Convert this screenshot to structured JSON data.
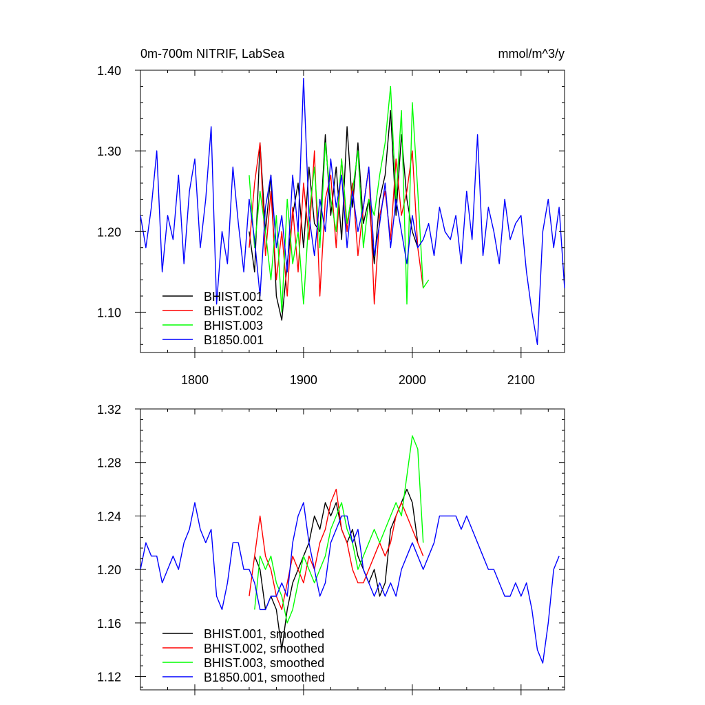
{
  "header": {
    "title": "0m-700m NITRIF, LabSea",
    "units": "mmol/m^3/y"
  },
  "chart_data": [
    {
      "type": "line",
      "title": "0m-700m NITRIF, LabSea",
      "units": "mmol/m^3/y",
      "xlim": [
        1750,
        2140
      ],
      "ylim": [
        1.05,
        1.4
      ],
      "xticks": [
        1800,
        1900,
        2000,
        2100
      ],
      "xtick_labels": [
        "1800",
        "1900",
        "2000",
        "2100"
      ],
      "yticks": [
        1.1,
        1.2,
        1.3,
        1.4
      ],
      "ytick_labels": [
        "1.10",
        "1.20",
        "1.30",
        "1.40"
      ],
      "legend_position": "bottom-left",
      "series": [
        {
          "name": "BHIST.001",
          "color": "#000000",
          "x": [
            1850,
            1855,
            1860,
            1865,
            1870,
            1875,
            1880,
            1885,
            1890,
            1895,
            1900,
            1905,
            1910,
            1915,
            1920,
            1925,
            1930,
            1935,
            1940,
            1945,
            1950,
            1955,
            1960,
            1965,
            1970,
            1975,
            1980,
            1985,
            1990,
            1995,
            2000,
            2005
          ],
          "y": [
            1.2,
            1.15,
            1.31,
            1.2,
            1.27,
            1.12,
            1.09,
            1.16,
            1.22,
            1.26,
            1.18,
            1.28,
            1.21,
            1.2,
            1.32,
            1.22,
            1.28,
            1.19,
            1.33,
            1.23,
            1.31,
            1.21,
            1.24,
            1.16,
            1.24,
            1.27,
            1.35,
            1.22,
            1.32,
            1.24,
            1.2,
            1.18
          ]
        },
        {
          "name": "BHIST.002",
          "color": "#ff0000",
          "x": [
            1850,
            1855,
            1860,
            1865,
            1870,
            1875,
            1880,
            1885,
            1890,
            1895,
            1900,
            1905,
            1910,
            1915,
            1920,
            1925,
            1930,
            1935,
            1940,
            1945,
            1950,
            1955,
            1960,
            1965,
            1970,
            1975,
            1980,
            1985,
            1990,
            1995,
            2000,
            2005,
            2010
          ],
          "y": [
            1.18,
            1.26,
            1.31,
            1.17,
            1.25,
            1.14,
            1.2,
            1.12,
            1.23,
            1.15,
            1.26,
            1.19,
            1.3,
            1.12,
            1.24,
            1.27,
            1.18,
            1.29,
            1.2,
            1.26,
            1.17,
            1.23,
            1.28,
            1.11,
            1.22,
            1.25,
            1.19,
            1.29,
            1.22,
            1.25,
            1.3,
            1.18,
            1.13
          ]
        },
        {
          "name": "BHIST.003",
          "color": "#00ff00",
          "x": [
            1850,
            1855,
            1860,
            1865,
            1870,
            1875,
            1880,
            1885,
            1890,
            1895,
            1900,
            1905,
            1910,
            1915,
            1920,
            1925,
            1930,
            1935,
            1940,
            1945,
            1950,
            1955,
            1960,
            1965,
            1970,
            1975,
            1980,
            1985,
            1990,
            1995,
            2000,
            2005,
            2010,
            2015
          ],
          "y": [
            1.27,
            1.18,
            1.25,
            1.2,
            1.14,
            1.22,
            1.1,
            1.24,
            1.16,
            1.2,
            1.11,
            1.22,
            1.28,
            1.18,
            1.31,
            1.24,
            1.2,
            1.29,
            1.21,
            1.25,
            1.3,
            1.18,
            1.24,
            1.22,
            1.27,
            1.31,
            1.38,
            1.24,
            1.35,
            1.11,
            1.36,
            1.25,
            1.13,
            1.14
          ]
        },
        {
          "name": "B1850.001",
          "color": "#0000ff",
          "x": [
            1750,
            1755,
            1760,
            1765,
            1770,
            1775,
            1780,
            1785,
            1790,
            1795,
            1800,
            1805,
            1810,
            1815,
            1820,
            1825,
            1830,
            1835,
            1840,
            1845,
            1850,
            1855,
            1860,
            1865,
            1870,
            1875,
            1880,
            1885,
            1890,
            1895,
            1900,
            1905,
            1910,
            1915,
            1920,
            1925,
            1930,
            1935,
            1940,
            1945,
            1950,
            1955,
            1960,
            1965,
            1970,
            1975,
            1980,
            1985,
            1990,
            1995,
            2000,
            2005,
            2010,
            2015,
            2020,
            2025,
            2030,
            2035,
            2040,
            2045,
            2050,
            2055,
            2060,
            2065,
            2070,
            2075,
            2080,
            2085,
            2090,
            2095,
            2100,
            2105,
            2110,
            2115,
            2120,
            2125,
            2130,
            2135,
            2140
          ],
          "y": [
            1.22,
            1.18,
            1.23,
            1.3,
            1.15,
            1.22,
            1.19,
            1.27,
            1.16,
            1.25,
            1.29,
            1.18,
            1.24,
            1.33,
            1.11,
            1.2,
            1.16,
            1.28,
            1.21,
            1.15,
            1.24,
            1.19,
            1.12,
            1.23,
            1.27,
            1.18,
            1.22,
            1.15,
            1.27,
            1.2,
            1.39,
            1.22,
            1.17,
            1.24,
            1.2,
            1.29,
            1.23,
            1.27,
            1.18,
            1.25,
            1.2,
            1.23,
            1.28,
            1.17,
            1.21,
            1.26,
            1.18,
            1.24,
            1.2,
            1.16,
            1.22,
            1.18,
            1.19,
            1.21,
            1.17,
            1.23,
            1.2,
            1.19,
            1.22,
            1.16,
            1.25,
            1.19,
            1.32,
            1.17,
            1.23,
            1.2,
            1.16,
            1.24,
            1.19,
            1.21,
            1.22,
            1.15,
            1.1,
            1.06,
            1.2,
            1.24,
            1.18,
            1.23,
            1.13
          ]
        }
      ]
    },
    {
      "type": "line",
      "xlim": [
        1750,
        2140
      ],
      "ylim": [
        1.11,
        1.32
      ],
      "xticks": [
        1800,
        1900,
        2000,
        2100
      ],
      "yticks": [
        1.12,
        1.16,
        1.2,
        1.24,
        1.28,
        1.32
      ],
      "ytick_labels": [
        "1.12",
        "1.16",
        "1.20",
        "1.24",
        "1.28",
        "1.32"
      ],
      "legend_position": "bottom-left",
      "series": [
        {
          "name": "BHIST.001, smoothed",
          "color": "#000000",
          "x": [
            1855,
            1860,
            1865,
            1870,
            1875,
            1880,
            1885,
            1890,
            1895,
            1900,
            1905,
            1910,
            1915,
            1920,
            1925,
            1930,
            1935,
            1940,
            1945,
            1950,
            1955,
            1960,
            1965,
            1970,
            1975,
            1980,
            1985,
            1990,
            1995,
            2000,
            2005
          ],
          "y": [
            1.21,
            1.2,
            1.17,
            1.18,
            1.17,
            1.14,
            1.17,
            1.19,
            1.2,
            1.21,
            1.22,
            1.24,
            1.23,
            1.25,
            1.24,
            1.25,
            1.23,
            1.22,
            1.23,
            1.21,
            1.2,
            1.19,
            1.2,
            1.18,
            1.19,
            1.23,
            1.24,
            1.25,
            1.26,
            1.25,
            1.22
          ]
        },
        {
          "name": "BHIST.002, smoothed",
          "color": "#ff0000",
          "x": [
            1850,
            1855,
            1860,
            1865,
            1870,
            1875,
            1880,
            1885,
            1890,
            1895,
            1900,
            1905,
            1910,
            1915,
            1920,
            1925,
            1930,
            1935,
            1940,
            1945,
            1950,
            1955,
            1960,
            1965,
            1970,
            1975,
            1980,
            1985,
            1990,
            1995,
            2000,
            2005,
            2010
          ],
          "y": [
            1.18,
            1.21,
            1.24,
            1.21,
            1.2,
            1.18,
            1.17,
            1.19,
            1.21,
            1.2,
            1.19,
            1.21,
            1.2,
            1.22,
            1.23,
            1.25,
            1.26,
            1.23,
            1.22,
            1.2,
            1.19,
            1.19,
            1.2,
            1.21,
            1.22,
            1.21,
            1.22,
            1.24,
            1.25,
            1.24,
            1.23,
            1.22,
            1.21
          ]
        },
        {
          "name": "BHIST.003, smoothed",
          "color": "#00ff00",
          "x": [
            1855,
            1860,
            1865,
            1870,
            1875,
            1880,
            1885,
            1890,
            1895,
            1900,
            1905,
            1910,
            1915,
            1920,
            1925,
            1930,
            1935,
            1940,
            1945,
            1950,
            1955,
            1960,
            1965,
            1970,
            1975,
            1980,
            1985,
            1990,
            1995,
            2000,
            2005,
            2010
          ],
          "y": [
            1.17,
            1.21,
            1.2,
            1.21,
            1.19,
            1.18,
            1.16,
            1.17,
            1.19,
            1.21,
            1.2,
            1.19,
            1.2,
            1.21,
            1.23,
            1.24,
            1.25,
            1.23,
            1.22,
            1.2,
            1.21,
            1.22,
            1.23,
            1.22,
            1.23,
            1.24,
            1.25,
            1.24,
            1.27,
            1.3,
            1.29,
            1.22
          ]
        },
        {
          "name": "B1850.001, smoothed",
          "color": "#0000ff",
          "x": [
            1750,
            1755,
            1760,
            1765,
            1770,
            1775,
            1780,
            1785,
            1790,
            1795,
            1800,
            1805,
            1810,
            1815,
            1820,
            1825,
            1830,
            1835,
            1840,
            1845,
            1850,
            1855,
            1860,
            1865,
            1870,
            1875,
            1880,
            1885,
            1890,
            1895,
            1900,
            1905,
            1910,
            1915,
            1920,
            1925,
            1930,
            1935,
            1940,
            1945,
            1950,
            1955,
            1960,
            1965,
            1970,
            1975,
            1980,
            1985,
            1990,
            1995,
            2000,
            2005,
            2010,
            2015,
            2020,
            2025,
            2030,
            2035,
            2040,
            2045,
            2050,
            2055,
            2060,
            2065,
            2070,
            2075,
            2080,
            2085,
            2090,
            2095,
            2100,
            2105,
            2110,
            2115,
            2120,
            2125,
            2130,
            2135
          ],
          "y": [
            1.2,
            1.22,
            1.21,
            1.21,
            1.19,
            1.2,
            1.21,
            1.2,
            1.22,
            1.23,
            1.25,
            1.23,
            1.22,
            1.23,
            1.18,
            1.17,
            1.19,
            1.22,
            1.22,
            1.2,
            1.2,
            1.19,
            1.17,
            1.17,
            1.18,
            1.18,
            1.19,
            1.18,
            1.22,
            1.24,
            1.25,
            1.22,
            1.2,
            1.18,
            1.19,
            1.22,
            1.23,
            1.24,
            1.24,
            1.22,
            1.23,
            1.2,
            1.19,
            1.18,
            1.19,
            1.18,
            1.19,
            1.18,
            1.2,
            1.21,
            1.22,
            1.21,
            1.2,
            1.21,
            1.22,
            1.24,
            1.24,
            1.24,
            1.24,
            1.23,
            1.24,
            1.23,
            1.22,
            1.21,
            1.2,
            1.2,
            1.19,
            1.18,
            1.18,
            1.19,
            1.18,
            1.19,
            1.17,
            1.14,
            1.13,
            1.16,
            1.2,
            1.21
          ]
        }
      ]
    }
  ]
}
